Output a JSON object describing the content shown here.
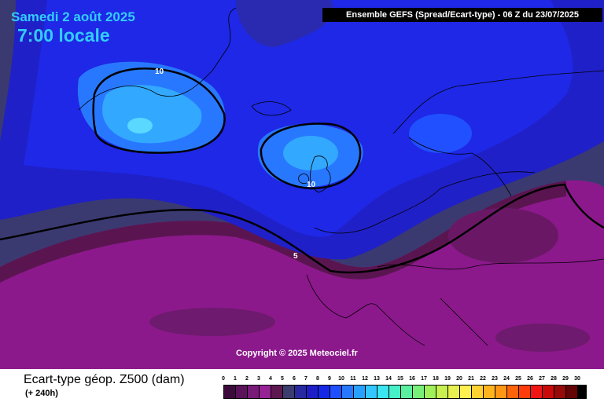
{
  "header": {
    "date": "Samedi 2 août 2025",
    "time": "7:00 locale",
    "model_title": "Ensemble GEFS  (Spread/Ecart-type) - 06 Z du 23/07/2025"
  },
  "map": {
    "contour_labels": [
      "10",
      "10",
      "5"
    ],
    "copyright": "Copyright © 2025 Meteociel.fr"
  },
  "footer": {
    "variable": "Ecart-type géop. Z500 (dam)",
    "lead_time": "(+ 240h)"
  },
  "legend": {
    "ticks": [
      "0",
      "1",
      "2",
      "3",
      "4",
      "5",
      "6",
      "7",
      "8",
      "9",
      "10",
      "11",
      "12",
      "13",
      "14",
      "15",
      "16",
      "17",
      "18",
      "19",
      "20",
      "21",
      "22",
      "23",
      "24",
      "25",
      "26",
      "27",
      "28",
      "29",
      "30"
    ],
    "colors": [
      "#3c0b3c",
      "#5a125a",
      "#781a78",
      "#962296",
      "#5e1850",
      "#3c3c6e",
      "#2828a0",
      "#1e1ec8",
      "#1428e6",
      "#1e50ff",
      "#2878ff",
      "#28a0ff",
      "#32c8ff",
      "#3ce6f0",
      "#46f0c8",
      "#5af0a0",
      "#78f078",
      "#a0f05a",
      "#c8f050",
      "#e6f050",
      "#fff050",
      "#ffd232",
      "#ffb41e",
      "#ff9614",
      "#ff640a",
      "#ff3c0a",
      "#f01414",
      "#c80a0a",
      "#960a0a",
      "#640505",
      "#000000"
    ]
  },
  "colors": {
    "spread_low": "#8a1a8a",
    "spread_mid": "#2020c8",
    "spread_high": "#33ccff",
    "contour": "#000000"
  }
}
